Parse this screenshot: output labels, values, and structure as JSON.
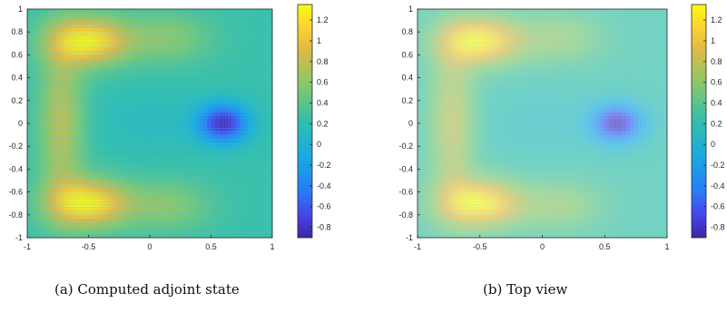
{
  "chart_data": [
    {
      "type": "heatmap",
      "caption": "(a) Computed adjoint state",
      "x_ticks": [
        "-1",
        "-0.5",
        "0",
        "0.5",
        "1"
      ],
      "y_ticks": [
        "1",
        "0.8",
        "0.6",
        "0.4",
        "0.2",
        "0",
        "-0.2",
        "-0.4",
        "-0.6",
        "-0.8",
        "-1"
      ],
      "xlim": [
        -1,
        1
      ],
      "ylim": [
        -1,
        1
      ],
      "colorbar": {
        "ticks": [
          "1.2",
          "1",
          "0.8",
          "0.6",
          "0.4",
          "0.2",
          "0",
          "-0.2",
          "-0.4",
          "-0.6",
          "-0.8"
        ],
        "range": [
          -0.9,
          1.35
        ]
      },
      "colormap": "parula",
      "features": {
        "max_value": 1.3,
        "max_regions": [
          [
            -0.55,
            0.75
          ],
          [
            -0.55,
            -0.7
          ]
        ],
        "min_value": -0.85,
        "min_location": [
          0.6,
          0.0
        ]
      },
      "style": "wireframe mesh"
    },
    {
      "type": "heatmap",
      "caption": "(b) Top view",
      "x_ticks": [
        "-1",
        "-0.5",
        "0",
        "0.5",
        "1"
      ],
      "y_ticks": [
        "1",
        "0.8",
        "0.6",
        "0.4",
        "0.2",
        "0",
        "-0.2",
        "-0.4",
        "-0.6",
        "-0.8",
        "-1"
      ],
      "xlim": [
        -1,
        1
      ],
      "ylim": [
        -1,
        1
      ],
      "colorbar": {
        "ticks": [
          "1.2",
          "1",
          "0.8",
          "0.6",
          "0.4",
          "0.2",
          "0",
          "-0.2",
          "-0.4",
          "-0.6",
          "-0.8"
        ],
        "range": [
          -0.9,
          1.35
        ]
      },
      "colormap": "parula",
      "features": {
        "max_value": 1.3,
        "max_regions": [
          [
            -0.55,
            0.75
          ],
          [
            -0.55,
            -0.7
          ]
        ],
        "min_value": -0.85,
        "min_location": [
          0.6,
          0.0
        ]
      },
      "style": "smooth mesh"
    }
  ]
}
